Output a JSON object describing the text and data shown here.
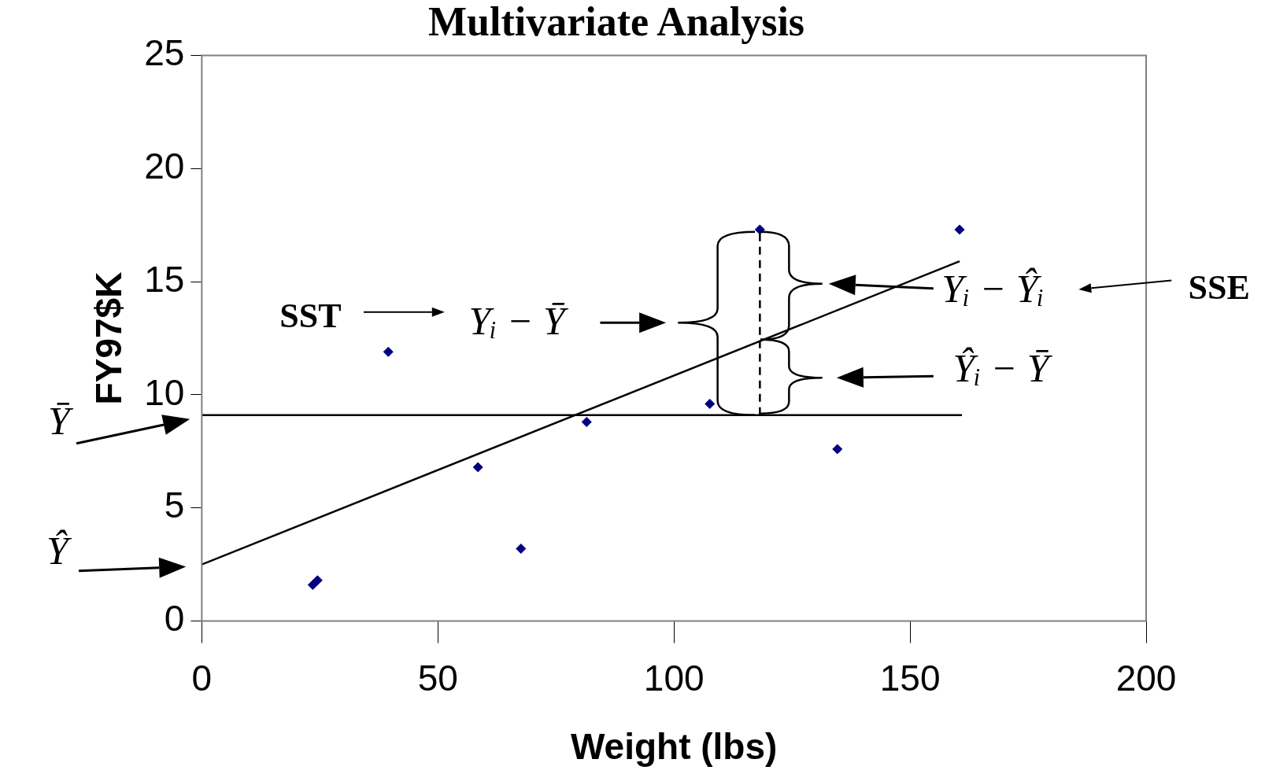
{
  "chart_data": {
    "type": "scatter",
    "title": "Multivariate Analysis",
    "xlabel": "Weight (lbs)",
    "ylabel": "FY97$K",
    "xlim": [
      0,
      200
    ],
    "ylim": [
      0,
      25
    ],
    "xticks": [
      0,
      50,
      100,
      150,
      200
    ],
    "yticks": [
      0,
      5,
      10,
      15,
      20,
      25
    ],
    "legend": false,
    "series": [
      {
        "type": "scatter",
        "color": "#000080",
        "marker": "diamond",
        "x": [
          23.5,
          24.5,
          39.5,
          58.5,
          67.6,
          81.5,
          107.6,
          118.2,
          134.6,
          160.5
        ],
        "values": [
          1.6,
          1.8,
          11.9,
          6.8,
          3.2,
          8.8,
          9.6,
          17.3,
          7.6,
          17.3
        ]
      },
      {
        "type": "line",
        "color": "#000000",
        "marker": "none",
        "x": [
          0,
          160.5
        ],
        "values": [
          2.5,
          15.9
        ]
      },
      {
        "type": "line",
        "color": "#000000",
        "marker": "none",
        "x": [
          0,
          161
        ],
        "values": [
          9.1,
          9.1
        ]
      },
      {
        "type": "line",
        "color": "#000000",
        "marker": "none",
        "line_style": "dashed",
        "x": [
          118.2,
          118.2
        ],
        "values": [
          9.1,
          17.3
        ]
      }
    ],
    "annotations": [
      "SST",
      "Yᵢ − Ȳ",
      "Yᵢ − Ŷᵢ",
      "SSE",
      "Ŷᵢ − Ȳ",
      "Ȳ",
      "Ŷ"
    ]
  }
}
